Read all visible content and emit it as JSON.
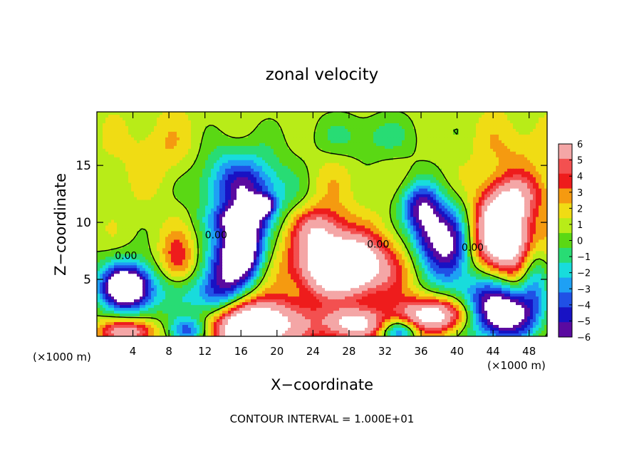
{
  "chart_data": {
    "type": "heatmap",
    "title": "zonal velocity",
    "xlabel": "X−coordinate",
    "ylabel": "Z−coordinate",
    "x_unit_left": "(×1000 m)",
    "x_unit_right": "(×1000 m)",
    "footnote": "CONTOUR INTERVAL = 1.000E+01",
    "xlim": [
      0,
      50
    ],
    "ylim": [
      0,
      19.7
    ],
    "x_ticks": [
      4,
      8,
      12,
      16,
      20,
      24,
      28,
      32,
      36,
      40,
      44,
      48
    ],
    "y_ticks": [
      5,
      10,
      15
    ],
    "contour_label": "0.00",
    "contour_label_positions": [
      [
        12,
        8.6
      ],
      [
        2,
        6.8
      ],
      [
        30,
        7.8
      ],
      [
        40.5,
        7.5
      ]
    ],
    "colorbar": {
      "levels": [
        6,
        5,
        4,
        3,
        2,
        1,
        0,
        -1,
        -2,
        -3,
        -4,
        -5,
        -6
      ],
      "colors": [
        "#f4a6a6",
        "#f35050",
        "#ee1c1c",
        "#f59a10",
        "#f0dc14",
        "#b8ec18",
        "#5ad814",
        "#28dc74",
        "#18dcdc",
        "#1ea0f4",
        "#2050e6",
        "#1812c4",
        "#5a0aa0"
      ]
    },
    "background_value": 0.6,
    "features": [
      {
        "x": 17,
        "y": 12.5,
        "v": -4.2,
        "rx": 4.8,
        "ry": 2.6
      },
      {
        "x": 15,
        "y": 14.5,
        "v": -3.0,
        "rx": 5,
        "ry": 3
      },
      {
        "x": 18.5,
        "y": 11.5,
        "v": -6.5,
        "rx": 1.2,
        "ry": 0.8
      },
      {
        "x": 15.5,
        "y": 10.2,
        "v": -4.5,
        "rx": 3,
        "ry": 1.2
      },
      {
        "x": 16,
        "y": 7.2,
        "v": -6.8,
        "rx": 2.2,
        "ry": 2.4
      },
      {
        "x": 14,
        "y": 5.5,
        "v": -4.5,
        "rx": 2.5,
        "ry": 3.5
      },
      {
        "x": 16.5,
        "y": 9,
        "v": -5.0,
        "rx": 2.2,
        "ry": 3.2
      },
      {
        "x": 27,
        "y": 6.5,
        "v": 7.5,
        "rx": 4.5,
        "ry": 2.3
      },
      {
        "x": 24.5,
        "y": 9.5,
        "v": 4.5,
        "rx": 2.8,
        "ry": 1.8
      },
      {
        "x": 28,
        "y": 5,
        "v": 5.5,
        "rx": 5.5,
        "ry": 3.5
      },
      {
        "x": 39,
        "y": 8,
        "v": -7.5,
        "rx": 2.4,
        "ry": 3.5
      },
      {
        "x": 36.5,
        "y": 9.5,
        "v": -5.2,
        "rx": 2,
        "ry": 3.2
      },
      {
        "x": 35.5,
        "y": 11.5,
        "v": -4,
        "rx": 2.2,
        "ry": 2
      },
      {
        "x": 45.5,
        "y": 8,
        "v": 8.5,
        "rx": 3.5,
        "ry": 2.8
      },
      {
        "x": 45,
        "y": 10.5,
        "v": 6,
        "rx": 2.6,
        "ry": 2
      },
      {
        "x": 46.5,
        "y": 12.5,
        "v": 4,
        "rx": 3.5,
        "ry": 1.8
      },
      {
        "x": 3.5,
        "y": 4.2,
        "v": -7.5,
        "rx": 2.6,
        "ry": 1.8
      },
      {
        "x": 3,
        "y": 4.5,
        "v": -4.5,
        "rx": 3.5,
        "ry": 2.5
      },
      {
        "x": 9,
        "y": 6.5,
        "v": 3.5,
        "rx": 2,
        "ry": 2.5
      },
      {
        "x": 9.5,
        "y": 3,
        "v": -3,
        "rx": 3,
        "ry": 2.5
      },
      {
        "x": 13,
        "y": 3,
        "v": -3.5,
        "rx": 2.5,
        "ry": 2.5
      },
      {
        "x": 17,
        "y": 0.5,
        "v": 9,
        "rx": 5.5,
        "ry": 1.8
      },
      {
        "x": 17,
        "y": 2.2,
        "v": 4,
        "rx": 6.5,
        "ry": 1.6
      },
      {
        "x": 3.5,
        "y": 0.4,
        "v": 6,
        "rx": 3,
        "ry": 1.1
      },
      {
        "x": 10,
        "y": 0.5,
        "v": -6,
        "rx": 2.2,
        "ry": 1.2
      },
      {
        "x": 28.5,
        "y": 1.2,
        "v": 8,
        "rx": 3.8,
        "ry": 1.5
      },
      {
        "x": 28.5,
        "y": 2.2,
        "v": -3.5,
        "rx": 5,
        "ry": 2
      },
      {
        "x": 37.5,
        "y": 1.9,
        "v": 8,
        "rx": 4.5,
        "ry": 1.5
      },
      {
        "x": 33.5,
        "y": 0.5,
        "v": -5.5,
        "rx": 2,
        "ry": 1.1
      },
      {
        "x": 45.5,
        "y": 1.9,
        "v": -8,
        "rx": 3.5,
        "ry": 2.2
      },
      {
        "x": 43,
        "y": 3,
        "v": -4.5,
        "rx": 3.5,
        "ry": 3
      },
      {
        "x": 48.5,
        "y": 5.5,
        "v": -4,
        "rx": 1.6,
        "ry": 3.5
      },
      {
        "x": 30,
        "y": 17.5,
        "v": -2.0,
        "rx": 6,
        "ry": 2
      },
      {
        "x": 26,
        "y": 13,
        "v": 1.0,
        "rx": 3,
        "ry": 3
      },
      {
        "x": 8,
        "y": 16,
        "v": 1.5,
        "rx": 5,
        "ry": 3
      },
      {
        "x": 46,
        "y": 16,
        "v": 1.5,
        "rx": 4,
        "ry": 3
      }
    ]
  }
}
